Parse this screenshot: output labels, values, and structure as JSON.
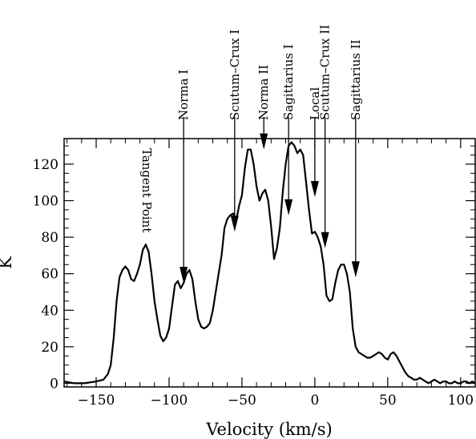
{
  "chart_data": {
    "type": "line",
    "title": "",
    "xlabel": "Velocity (km/s)",
    "ylabel": "K",
    "xlim": [
      -172,
      110
    ],
    "ylim": [
      -2,
      134
    ],
    "x_ticks": [
      -150,
      -100,
      -50,
      0,
      50,
      100
    ],
    "x_tick_labels": [
      "−150",
      "−100",
      "−50",
      "0",
      "50",
      "100"
    ],
    "y_ticks": [
      0,
      20,
      40,
      60,
      80,
      100,
      120
    ],
    "y_tick_labels": [
      "0",
      "20",
      "40",
      "60",
      "80",
      "100",
      "120"
    ],
    "grid": false,
    "legend": "none",
    "line_color": "#000000",
    "series": [
      {
        "x": [
          -172,
          -165,
          -158,
          -150,
          -145,
          -142,
          -140,
          -138,
          -136,
          -134,
          -132,
          -130,
          -128,
          -126,
          -124,
          -122,
          -120,
          -118,
          -116,
          -114,
          -112,
          -110,
          -108,
          -106,
          -104,
          -102,
          -100,
          -98,
          -96,
          -94,
          -92,
          -90,
          -88,
          -86,
          -84,
          -82,
          -80,
          -78,
          -76,
          -74,
          -72,
          -70,
          -68,
          -66,
          -64,
          -62,
          -60,
          -58,
          -56,
          -54,
          -52,
          -50,
          -48,
          -46,
          -44,
          -42,
          -40,
          -38,
          -36,
          -34,
          -32,
          -30,
          -28,
          -26,
          -24,
          -22,
          -20,
          -18,
          -16,
          -14,
          -12,
          -10,
          -8,
          -6,
          -4,
          -2,
          0,
          2,
          4,
          6,
          8,
          10,
          12,
          14,
          16,
          18,
          20,
          22,
          24,
          26,
          28,
          30,
          32,
          34,
          36,
          38,
          40,
          42,
          44,
          46,
          48,
          50,
          52,
          54,
          56,
          58,
          60,
          62,
          64,
          66,
          68,
          70,
          72,
          74,
          76,
          78,
          80,
          82,
          84,
          86,
          88,
          90,
          92,
          94,
          96,
          98,
          100,
          102,
          104,
          106,
          108,
          110
        ],
        "values": [
          1,
          0,
          0,
          1,
          2,
          5,
          10,
          25,
          45,
          58,
          62,
          64,
          62,
          57,
          56,
          60,
          65,
          73,
          76,
          72,
          60,
          45,
          35,
          26,
          23,
          25,
          30,
          42,
          54,
          56,
          52,
          55,
          60,
          62,
          57,
          45,
          35,
          31,
          30,
          31,
          33,
          40,
          50,
          60,
          70,
          85,
          90,
          92,
          93,
          89,
          97,
          103,
          118,
          128,
          128,
          120,
          108,
          100,
          104,
          106,
          100,
          86,
          68,
          74,
          85,
          105,
          120,
          130,
          132,
          130,
          126,
          128,
          125,
          110,
          95,
          82,
          83,
          80,
          75,
          65,
          48,
          45,
          46,
          55,
          62,
          65,
          65,
          60,
          50,
          30,
          20,
          17,
          16,
          15,
          14,
          14,
          15,
          16,
          17,
          16,
          14,
          13,
          16,
          17,
          15,
          12,
          9,
          6,
          4,
          3,
          2,
          2,
          3,
          2,
          1,
          0,
          1,
          2,
          1,
          0,
          1,
          1,
          0,
          0,
          1,
          0,
          0,
          1,
          1,
          0,
          1,
          0
        ]
      }
    ],
    "annotations": [
      {
        "label": "Tangent Point",
        "x": -118,
        "arrow": false
      },
      {
        "label": "Norma I",
        "x": -90,
        "arrow": true,
        "tip_y": 55
      },
      {
        "label": "Scutum–Crux I",
        "x": -55,
        "arrow": true,
        "tip_y": 83
      },
      {
        "label": "Norma II",
        "x": -35,
        "arrow": true,
        "tip_y": 128
      },
      {
        "label": "Sagittarius I",
        "x": -18,
        "arrow": true,
        "tip_y": 92
      },
      {
        "label": "Local",
        "x": 0,
        "arrow": true,
        "tip_y": 102
      },
      {
        "label": "Scutum–Crux II",
        "x": 7,
        "arrow": true,
        "tip_y": 74
      },
      {
        "label": "Sagittarius II",
        "x": 28,
        "arrow": true,
        "tip_y": 58
      }
    ]
  }
}
